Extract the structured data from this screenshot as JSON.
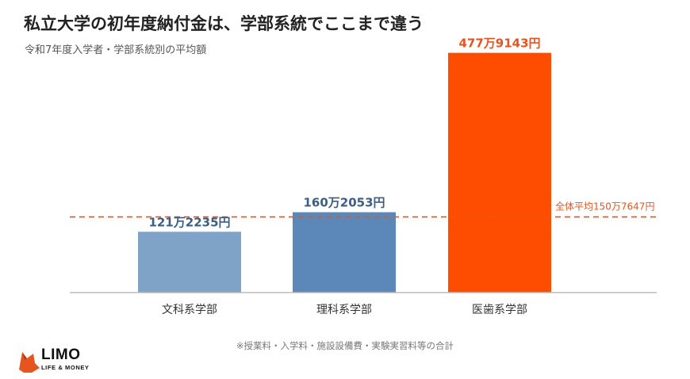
{
  "header": {
    "title": "私立大学の初年度納付金は、学部系統でここまで違う",
    "subtitle": "令和7年度入学者・学部系統別の平均額"
  },
  "footnote": "※授業料・入学料・施設設備費・実験実習料等の合計",
  "logo": {
    "name": "LIMO",
    "tagline": "LIFE & MONEY",
    "icon": "fox-icon",
    "color": "#e8541f"
  },
  "chart_data": {
    "type": "bar",
    "categories": [
      "文科系学部",
      "理科系学部",
      "医歯系学部"
    ],
    "values": [
      1212235,
      1602053,
      4779143
    ],
    "data_labels": [
      "121万2235円",
      "160万2053円",
      "477万9143円"
    ],
    "colors": [
      "#7fa3c7",
      "#5b88b8",
      "#ff4d00"
    ],
    "label_colors": [
      "#3d5e84",
      "#3d5e84",
      "#e8541f"
    ],
    "reference_line": {
      "value": 1507647,
      "label": "全体平均150万7647円",
      "color": "#e8541f",
      "style": "dashed"
    },
    "title": "",
    "xlabel": "",
    "ylabel": "",
    "ylim": [
      0,
      5200000
    ],
    "grid": false,
    "legend": "none"
  }
}
